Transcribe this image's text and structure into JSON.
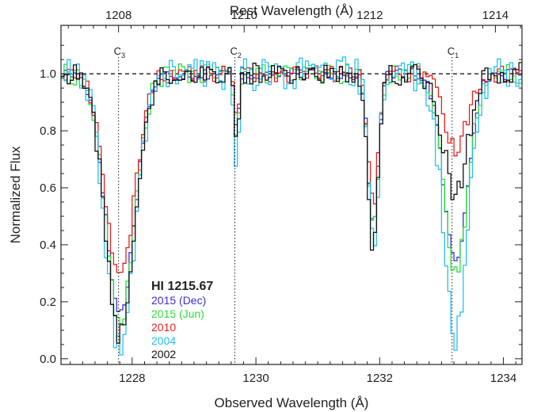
{
  "chart_data": {
    "type": "line",
    "xlabel": "Observed Wavelength (Å)",
    "ylabel": "Normalized Flux",
    "x2label": "Rest Wavelength (Å)",
    "xlim": [
      1226.85,
      1234.3
    ],
    "ylim": [
      -0.02,
      1.17
    ],
    "x_ticks": [
      "1228",
      "1230",
      "1232",
      "1234"
    ],
    "y_ticks": [
      "0.0",
      "0.2",
      "0.4",
      "0.6",
      "0.8",
      "1.0"
    ],
    "x2_ticks": [
      "1208",
      "1210",
      "1212",
      "1214"
    ],
    "x2_tick_obs": [
      1227.78,
      1229.81,
      1231.84,
      1233.87
    ],
    "continuum_level": 1.0,
    "component_markers": [
      {
        "label": "C",
        "sub": "3",
        "x": 1227.78
      },
      {
        "label": "C",
        "sub": "2",
        "x": 1229.66
      },
      {
        "label": "C",
        "sub": "1",
        "x": 1233.17
      }
    ],
    "legend_title": "HI 1215.67",
    "legend": [
      {
        "name": "2015 (Dec)",
        "color": "#3b2fd6"
      },
      {
        "name": "2015 (Jun)",
        "color": "#2ddf3a"
      },
      {
        "name": "2010",
        "color": "#e8201c"
      },
      {
        "name": "2004",
        "color": "#27c0f0"
      },
      {
        "name": "2002",
        "color": "#111111"
      }
    ],
    "series": [
      {
        "name": "2015 (Dec)",
        "color": "#3b2fd6",
        "depth": [
          0.84,
          0.2,
          0.54,
          0.66
        ],
        "noise": 0.02
      },
      {
        "name": "2015 (Jun)",
        "color": "#2ddf3a",
        "depth": [
          0.87,
          0.21,
          0.56,
          0.7
        ],
        "noise": 0.035
      },
      {
        "name": "2010",
        "color": "#e8201c",
        "depth": [
          0.72,
          0.16,
          0.46,
          0.26
        ],
        "noise": 0.03
      },
      {
        "name": "2004",
        "color": "#27c0f0",
        "depth": [
          0.98,
          0.31,
          0.62,
          0.94
        ],
        "noise": 0.06
      },
      {
        "name": "2002",
        "color": "#111111",
        "depth": [
          0.92,
          0.25,
          0.6,
          0.42
        ],
        "noise": 0.04
      }
    ]
  }
}
